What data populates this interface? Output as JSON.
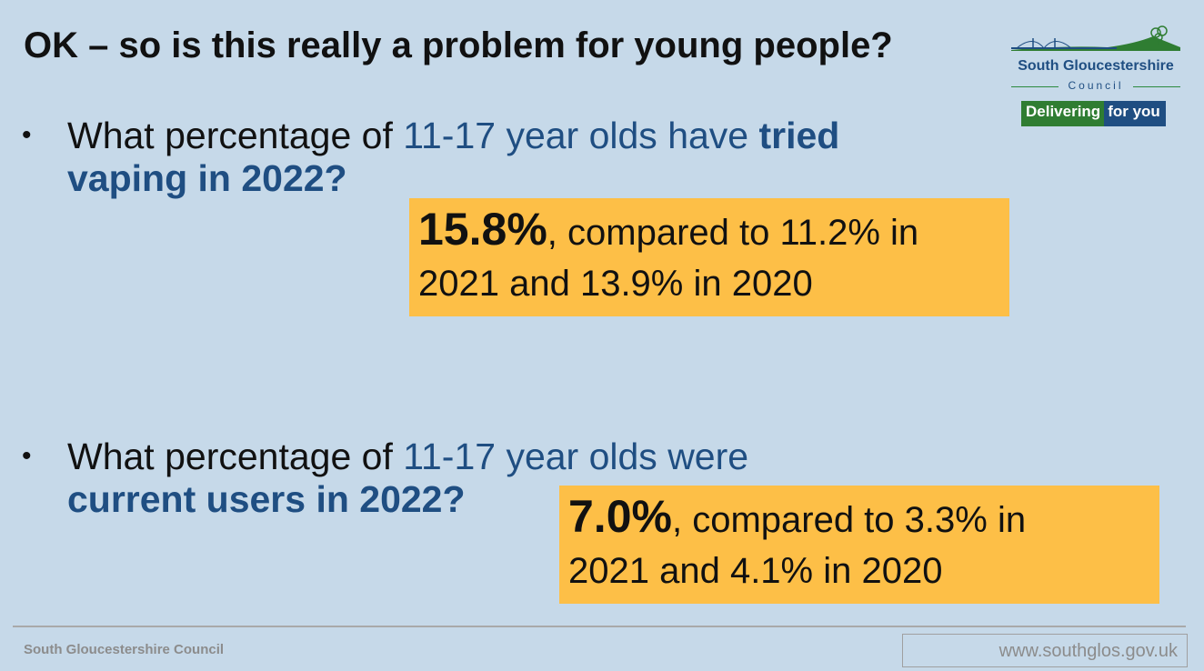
{
  "slide": {
    "title": "OK – so is this really a problem for young people?",
    "question1": {
      "prefix": "What percentage of ",
      "group": "11-17 year olds have ",
      "emphasis": "tried",
      "line2": "vaping in 2022?"
    },
    "answer1": {
      "value": "15.8%",
      "text1": ", compared to 11.2% in",
      "text2": "2021 and 13.9% in 2020"
    },
    "question2": {
      "prefix": "What percentage of ",
      "group": "11-17 year olds were",
      "line2": "current users in 2022?"
    },
    "answer2": {
      "value": "7.0%",
      "text1": ", compared to 3.3% in",
      "text2": "2021 and 4.1% in 2020"
    }
  },
  "logo": {
    "name": "South Gloucestershire",
    "council": "Council",
    "strap_green": "Delivering",
    "strap_blue": "for you",
    "colors": {
      "blue": "#1f4e82",
      "green": "#2f7d32"
    }
  },
  "footer": {
    "org": "South Gloucestershire Council",
    "url": "www.southglos.gov.uk"
  },
  "colors": {
    "background": "#c6d9e9",
    "answer_box": "#fdbf47",
    "highlight_text": "#1f4e82"
  }
}
